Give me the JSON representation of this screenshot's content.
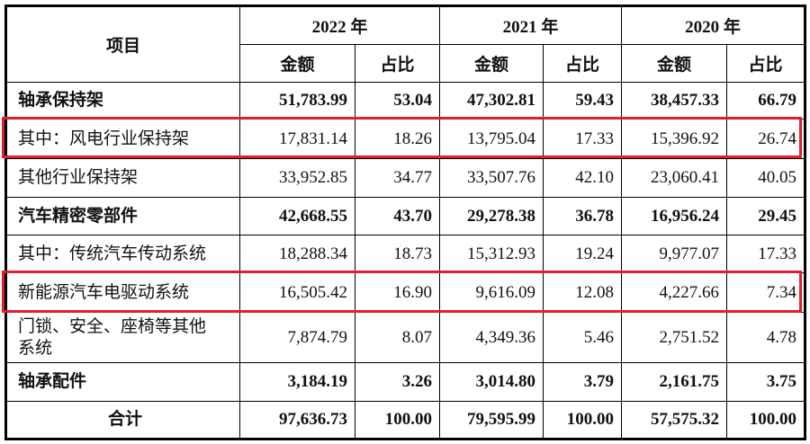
{
  "header": {
    "item_label": "项目",
    "years": [
      "2022 年",
      "2021 年",
      "2020 年"
    ],
    "amount_label": "金额",
    "share_label": "占比"
  },
  "rows": [
    {
      "label": "轴承保持架",
      "bold": true,
      "values": [
        "51,783.99",
        "53.04",
        "47,302.81",
        "59.43",
        "38,457.33",
        "66.79"
      ]
    },
    {
      "label": "其中：风电行业保持架",
      "bold": false,
      "highlighted": true,
      "values": [
        "17,831.14",
        "18.26",
        "13,795.04",
        "17.33",
        "15,396.92",
        "26.74"
      ]
    },
    {
      "label": "其他行业保持架",
      "bold": false,
      "values": [
        "33,952.85",
        "34.77",
        "33,507.76",
        "42.10",
        "23,060.41",
        "40.05"
      ]
    },
    {
      "label": "汽车精密零部件",
      "bold": true,
      "values": [
        "42,668.55",
        "43.70",
        "29,278.38",
        "36.78",
        "16,956.24",
        "29.45"
      ]
    },
    {
      "label": "其中：传统汽车传动系统",
      "bold": false,
      "values": [
        "18,288.34",
        "18.73",
        "15,312.93",
        "19.24",
        "9,977.07",
        "17.33"
      ]
    },
    {
      "label": "新能源汽车电驱动系统",
      "bold": false,
      "highlighted": true,
      "values": [
        "16,505.42",
        "16.90",
        "9,616.09",
        "12.08",
        "4,227.66",
        "7.34"
      ]
    },
    {
      "label": "门锁、安全、座椅等其他系统",
      "bold": false,
      "values": [
        "7,874.79",
        "8.07",
        "4,349.36",
        "5.46",
        "2,751.52",
        "4.78"
      ]
    },
    {
      "label": "轴承配件",
      "bold": true,
      "values": [
        "3,184.19",
        "3.26",
        "3,014.80",
        "3.79",
        "2,161.75",
        "3.75"
      ]
    },
    {
      "label": "合计",
      "bold": true,
      "total": true,
      "values": [
        "97,636.73",
        "100.00",
        "79,595.99",
        "100.00",
        "57,575.32",
        "100.00"
      ]
    }
  ],
  "highlight_color": "#e0202a"
}
